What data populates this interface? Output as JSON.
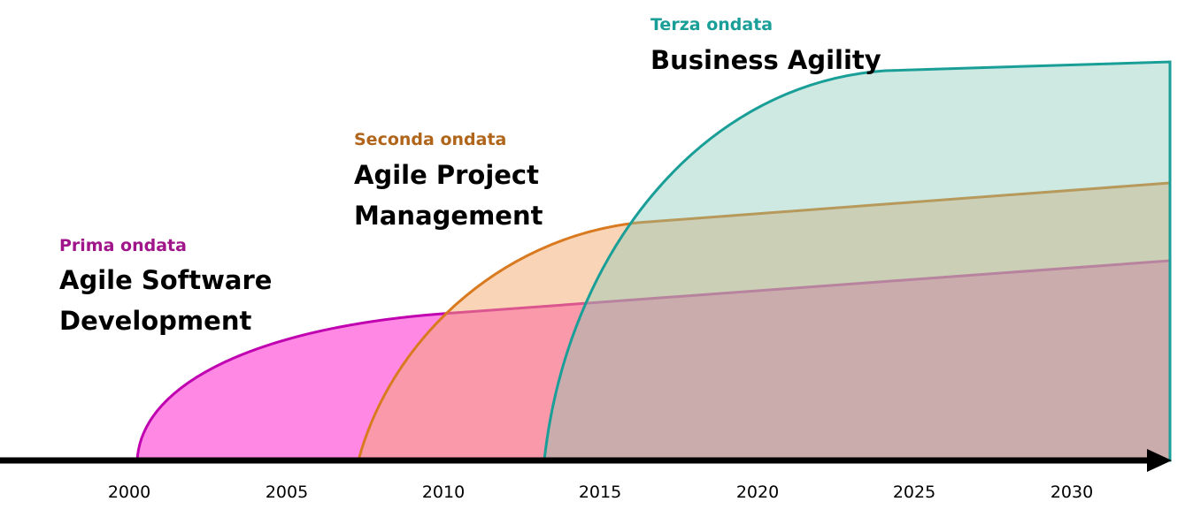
{
  "waves": [
    {
      "label": "Prima ondata",
      "title": [
        "Agile Software",
        "Development"
      ]
    },
    {
      "label": "Seconda ondata",
      "title": [
        "Agile Project",
        "Management"
      ]
    },
    {
      "label": "Terza ondata",
      "title": [
        "Business Agility"
      ]
    }
  ],
  "axis": {
    "ticks": [
      2000,
      2005,
      2010,
      2015,
      2020,
      2025,
      2030
    ]
  }
}
